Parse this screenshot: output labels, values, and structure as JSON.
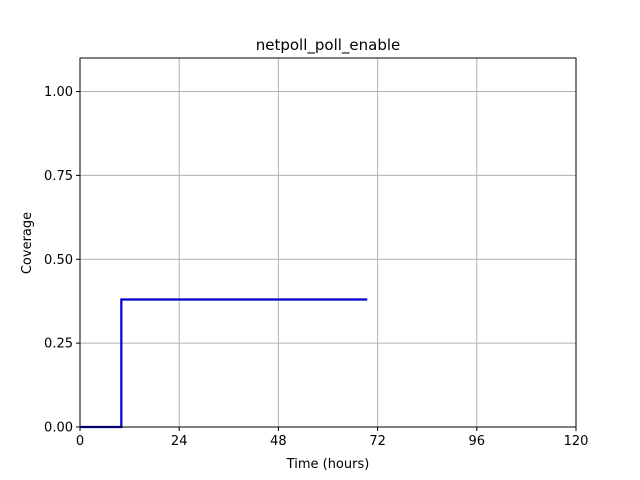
{
  "chart_data": {
    "type": "line",
    "title": "netpoll_poll_enable",
    "xlabel": "Time (hours)",
    "ylabel": "Coverage",
    "xlim": [
      0,
      120
    ],
    "ylim": [
      0,
      1.1
    ],
    "xticks": [
      0,
      24,
      48,
      72,
      96,
      120
    ],
    "xtick_labels": [
      "0",
      "24",
      "48",
      "72",
      "96",
      "120"
    ],
    "yticks": [
      0,
      0.25,
      0.5,
      0.75,
      1.0
    ],
    "ytick_labels": [
      "0.00",
      "0.25",
      "0.50",
      "0.75",
      "1.00"
    ],
    "grid": true,
    "series": [
      {
        "color": "#0000cc",
        "step": true,
        "x": [
          0,
          10,
          10,
          69.5
        ],
        "y": [
          0,
          0,
          0.38,
          0.38
        ]
      }
    ]
  }
}
